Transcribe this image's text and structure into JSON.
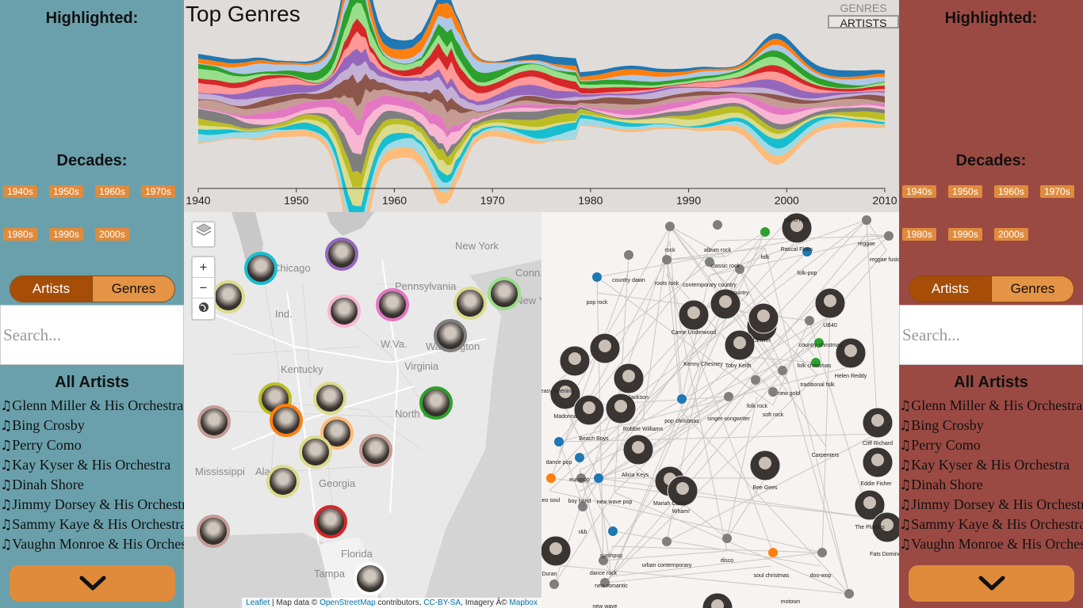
{
  "panels": [
    {
      "highlighted_title": "Highlighted:",
      "decades_title": "Decades:",
      "decades": [
        "1940s",
        "1950s",
        "1960s",
        "1970s",
        "1980s",
        "1990s",
        "2000s"
      ],
      "toggle": {
        "artists": "Artists",
        "genres": "Genres",
        "active": "artists"
      },
      "search_placeholder": "Search...",
      "list_title": "All Artists",
      "artists": [
        "Glenn Miller & His Orchestra",
        "Bing Crosby",
        "Perry Como",
        "Kay Kyser & His Orchestra",
        "Dinah Shore",
        "Jimmy Dorsey & His Orchestra",
        "Sammy Kaye & His Orchestra",
        "Vaughn Monroe & His Orchestra"
      ],
      "more_icon": "chevron-down-icon",
      "color": "#6aa0ab"
    },
    {
      "highlighted_title": "Highlighted:",
      "decades_title": "Decades:",
      "decades": [
        "1940s",
        "1950s",
        "1960s",
        "1970s",
        "1980s",
        "1990s",
        "2000s"
      ],
      "toggle": {
        "artists": "Artists",
        "genres": "Genres",
        "active": "artists"
      },
      "search_placeholder": "Search...",
      "list_title": "All Artists",
      "artists": [
        "Glenn Miller & His Orchestra",
        "Bing Crosby",
        "Perry Como",
        "Kay Kyser & His Orchestra",
        "Dinah Shore",
        "Jimmy Dorsey & His Orchestra",
        "Sammy Kaye & His Orchestra",
        "Vaughn Monroe & His Orchestra"
      ],
      "more_icon": "chevron-down-icon",
      "color": "#9b4a43"
    }
  ],
  "stream": {
    "title": "Top Genres",
    "mode_options": [
      "GENRES",
      "ARTISTS"
    ],
    "mode_selected": "ARTISTS",
    "chart_data": {
      "type": "area",
      "xlim": [
        1940,
        2010
      ],
      "x_ticks": [
        "1940",
        "1950",
        "1960",
        "1970",
        "1980",
        "1990",
        "2000",
        "2010"
      ],
      "stream_colors": [
        "#1f77b4",
        "#ff7f0e",
        "#aec7e8",
        "#2ca02c",
        "#98df8a",
        "#d62728",
        "#ff9896",
        "#9467bd",
        "#c5b0d5",
        "#8c564b",
        "#c49c94",
        "#e377c2",
        "#f7b6d2",
        "#7f7f7f",
        "#bcbd22",
        "#dbdb8d",
        "#17becf",
        "#9edae5",
        "#ffbb78"
      ]
    }
  },
  "map": {
    "labels": [
      "Chicago",
      "New York",
      "Pennsylvania",
      "New Y",
      "Ind.",
      "W.Va.",
      "Washington",
      "Kentucky",
      "Virginia",
      "North Car",
      "Mississippi",
      "Ala",
      "Georgia",
      "Florida",
      "Tampa",
      "Conn."
    ],
    "marker_colors": [
      "#1f77b4",
      "#ff7f0e",
      "#2ca02c",
      "#d62728",
      "#9467bd",
      "#8c564b",
      "#e377c2",
      "#7f7f7f",
      "#bcbd22",
      "#17becf",
      "#dbdb8d",
      "#c49c94",
      "#f7b6d2"
    ],
    "controls": {
      "zoom_in": "+",
      "zoom_out": "−",
      "layers_icon": "layers-icon",
      "globe_icon": "globe-icon"
    },
    "attribution": {
      "leaflet": "Leaflet",
      "text1": " | Map data © ",
      "osm": "OpenStreetMap",
      "text2": " contributors, ",
      "license": "CC-BY-SA",
      "text3": ", Imagery Â© ",
      "mapbox": "Mapbox"
    }
  },
  "network": {
    "genre_labels": [
      "piano rock",
      "reggae",
      "reggae fusion",
      "rock",
      "album rock",
      "classic rock",
      "folk",
      "folk-pop",
      "country dawn",
      "roots rock",
      "contemporary country",
      "country",
      "pop rock",
      "UB40",
      "Rascal Flatts",
      "Carrie Underwood",
      "Denver",
      "country christmas",
      "folk christmas",
      "Helen Reddy",
      "Kenny Chesney",
      "Toby Keith",
      "traditional folk",
      "easy listening",
      "new gold",
      "soft rock",
      "folk rock",
      "singer-songwriter",
      "pop christmas",
      "Jackson",
      "Madonna",
      "Robbie Williams",
      "Beach Boys",
      "Carpenters",
      "Cliff Richard",
      "Eddie Fisher",
      "Alicia Keys",
      "Bee Gees",
      "dance pop",
      "europop",
      "boy band",
      "new wave pop",
      "neo soul",
      "Mariah Carey",
      "Wham!",
      "r&b",
      "The Platters",
      "synthpop",
      "Fats Domino",
      "dance rock",
      "urban contemporary",
      "disco",
      "soul christmas",
      "doo-wop",
      "new romantic",
      "Duran",
      "motown",
      "new wave"
    ]
  }
}
